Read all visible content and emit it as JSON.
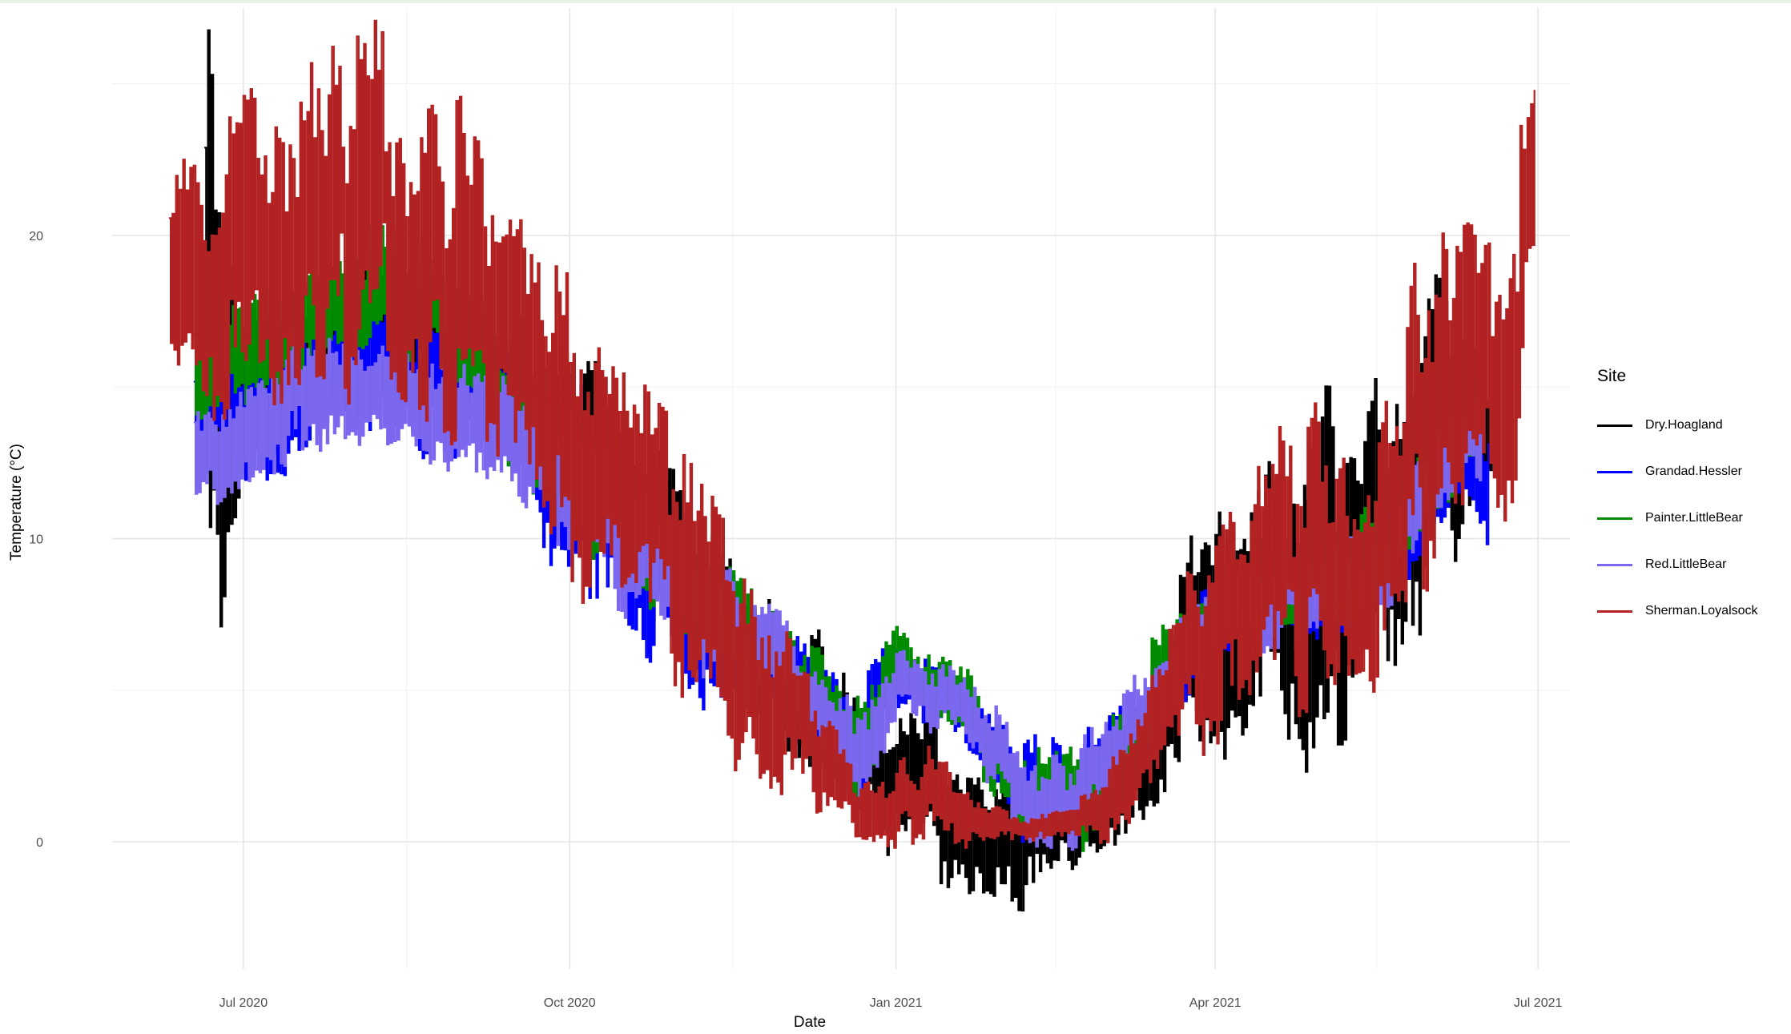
{
  "chart_data": {
    "type": "line",
    "title": "",
    "xlabel": "Date",
    "ylabel": "Temperature (°C)",
    "x_type": "date",
    "x_range": [
      "2020-05-25",
      "2021-07-10"
    ],
    "ylim": [
      -4.2,
      27.5
    ],
    "y_ticks": [
      0,
      10,
      20
    ],
    "x_ticks": [
      {
        "date": "2020-07-01",
        "label": "Jul 2020"
      },
      {
        "date": "2020-10-01",
        "label": "Oct 2020"
      },
      {
        "date": "2021-01-01",
        "label": "Jan 2021"
      },
      {
        "date": "2021-04-01",
        "label": "Apr 2021"
      },
      {
        "date": "2021-07-01",
        "label": "Jul 2021"
      }
    ],
    "grid": true,
    "legend_title": "Site",
    "legend_position": "right",
    "series": [
      {
        "name": "Dry.Hoagland",
        "color": "#000000",
        "points": [
          [
            "2020-06-20",
            15.2,
            15.2
          ],
          [
            "2020-07-01",
            15.5,
            3.0
          ],
          [
            "2020-07-20",
            16.8,
            3.0
          ],
          [
            "2020-08-10",
            17.3,
            3.0
          ],
          [
            "2020-09-01",
            16.4,
            3.0
          ],
          [
            "2020-09-20",
            14.0,
            3.5
          ],
          [
            "2020-10-05",
            12.8,
            3.5
          ],
          [
            "2020-10-20",
            10.8,
            3.5
          ],
          [
            "2020-11-05",
            8.5,
            3.0
          ],
          [
            "2020-11-25",
            6.0,
            2.5
          ],
          [
            "2020-12-10",
            4.6,
            2.5
          ],
          [
            "2020-12-25",
            2.2,
            3.0
          ],
          [
            "2021-01-10",
            1.6,
            3.0
          ],
          [
            "2021-01-25",
            0.3,
            3.0
          ],
          [
            "2021-02-05",
            0.1,
            3.0
          ],
          [
            "2021-02-20",
            0.3,
            2.0
          ],
          [
            "2021-03-05",
            1.0,
            2.5
          ],
          [
            "2021-03-20",
            5.0,
            3.0
          ],
          [
            "2021-04-01",
            7.5,
            6.0
          ],
          [
            "2021-04-15",
            8.8,
            5.0
          ],
          [
            "2021-05-01",
            8.0,
            8.0
          ],
          [
            "2021-05-15",
            10.5,
            6.0
          ],
          [
            "2021-06-01",
            12.5,
            7.0
          ],
          [
            "2021-06-12",
            14.2,
            5.0
          ],
          [
            "2021-06-18",
            13.0,
            3.0
          ]
        ]
      },
      {
        "name": "Grandad.Hessler",
        "color": "#0000ff",
        "points": [
          [
            "2020-06-17",
            13.8,
            2.5
          ],
          [
            "2020-07-01",
            14.3,
            3.0
          ],
          [
            "2020-07-20",
            15.2,
            3.0
          ],
          [
            "2020-08-10",
            15.6,
            3.0
          ],
          [
            "2020-09-01",
            15.0,
            3.0
          ],
          [
            "2020-09-15",
            13.8,
            3.0
          ],
          [
            "2020-10-05",
            11.0,
            4.5
          ],
          [
            "2020-10-20",
            9.8,
            4.0
          ],
          [
            "2020-11-05",
            7.8,
            4.0
          ],
          [
            "2020-11-25",
            6.0,
            2.0
          ],
          [
            "2020-12-10",
            4.2,
            2.0
          ],
          [
            "2020-12-20",
            3.0,
            2.5
          ],
          [
            "2021-01-01",
            5.5,
            1.5
          ],
          [
            "2021-01-20",
            4.3,
            1.5
          ],
          [
            "2021-02-05",
            1.8,
            2.0
          ],
          [
            "2021-02-20",
            1.5,
            2.0
          ],
          [
            "2021-03-05",
            3.0,
            2.0
          ],
          [
            "2021-03-20",
            5.2,
            2.0
          ],
          [
            "2021-04-01",
            7.5,
            2.0
          ],
          [
            "2021-04-15",
            8.2,
            2.0
          ],
          [
            "2021-05-01",
            8.5,
            2.0
          ],
          [
            "2021-05-15",
            9.0,
            2.0
          ],
          [
            "2021-06-01",
            11.0,
            2.0
          ],
          [
            "2021-06-12",
            12.8,
            2.0
          ],
          [
            "2021-06-17",
            11.2,
            3.0
          ]
        ]
      },
      {
        "name": "Painter.LittleBear",
        "color": "#008b00",
        "points": [
          [
            "2020-06-17",
            15.0,
            2.5
          ],
          [
            "2020-07-01",
            16.2,
            2.5
          ],
          [
            "2020-07-20",
            17.8,
            2.5
          ],
          [
            "2020-08-10",
            18.2,
            2.5
          ],
          [
            "2020-09-01",
            16.8,
            2.5
          ],
          [
            "2020-09-15",
            14.5,
            3.0
          ],
          [
            "2020-10-05",
            12.2,
            3.5
          ],
          [
            "2020-10-20",
            10.6,
            3.0
          ],
          [
            "2020-11-05",
            8.4,
            3.0
          ],
          [
            "2020-11-25",
            6.6,
            2.0
          ],
          [
            "2020-12-10",
            4.8,
            2.0
          ],
          [
            "2020-12-20",
            2.8,
            2.5
          ],
          [
            "2021-01-01",
            5.8,
            1.5
          ],
          [
            "2021-01-20",
            4.5,
            1.5
          ],
          [
            "2021-02-05",
            1.5,
            2.0
          ],
          [
            "2021-02-20",
            1.2,
            2.0
          ],
          [
            "2021-03-05",
            3.0,
            2.0
          ],
          [
            "2021-03-20",
            6.0,
            2.0
          ],
          [
            "2021-04-01",
            7.8,
            2.0
          ],
          [
            "2021-04-15",
            8.6,
            2.0
          ],
          [
            "2021-05-01",
            8.8,
            2.0
          ],
          [
            "2021-05-15",
            9.5,
            2.0
          ],
          [
            "2021-06-01",
            12.0,
            2.0
          ],
          [
            "2021-06-12",
            14.5,
            2.5
          ],
          [
            "2021-06-15",
            13.5,
            2.5
          ]
        ]
      },
      {
        "name": "Red.LittleBear",
        "color": "#7b68ee",
        "points": [
          [
            "2020-06-17",
            12.2,
            2.0
          ],
          [
            "2020-07-01",
            13.6,
            2.5
          ],
          [
            "2020-07-20",
            14.8,
            2.5
          ],
          [
            "2020-08-10",
            15.2,
            2.5
          ],
          [
            "2020-09-01",
            14.5,
            2.5
          ],
          [
            "2020-09-15",
            13.5,
            2.5
          ],
          [
            "2020-10-05",
            11.5,
            3.0
          ],
          [
            "2020-10-20",
            9.5,
            3.0
          ],
          [
            "2020-11-05",
            7.8,
            3.0
          ],
          [
            "2020-11-25",
            6.2,
            2.0
          ],
          [
            "2020-12-10",
            4.8,
            2.0
          ],
          [
            "2020-12-20",
            2.0,
            2.5
          ],
          [
            "2021-01-01",
            5.2,
            1.5
          ],
          [
            "2021-01-20",
            4.6,
            1.5
          ],
          [
            "2021-02-05",
            1.5,
            2.0
          ],
          [
            "2021-02-20",
            1.3,
            2.0
          ],
          [
            "2021-03-05",
            3.5,
            2.0
          ],
          [
            "2021-03-20",
            5.5,
            2.0
          ],
          [
            "2021-04-01",
            7.3,
            2.0
          ],
          [
            "2021-04-15",
            8.0,
            2.0
          ],
          [
            "2021-05-01",
            8.3,
            2.0
          ],
          [
            "2021-05-15",
            8.8,
            2.0
          ],
          [
            "2021-06-01",
            11.5,
            2.0
          ],
          [
            "2021-06-12",
            13.0,
            2.0
          ],
          [
            "2021-06-15",
            12.5,
            2.0
          ]
        ]
      },
      {
        "name": "Sherman.Loyalsock",
        "color": "#b22222",
        "points": [
          [
            "2020-06-10",
            18.5,
            4.5
          ],
          [
            "2020-07-01",
            19.5,
            6.5
          ],
          [
            "2020-07-20",
            20.5,
            7.0
          ],
          [
            "2020-08-10",
            21.0,
            7.0
          ],
          [
            "2020-09-01",
            18.5,
            6.5
          ],
          [
            "2020-09-20",
            14.5,
            5.5
          ],
          [
            "2020-10-05",
            13.0,
            6.0
          ],
          [
            "2020-10-20",
            11.5,
            5.0
          ],
          [
            "2020-11-05",
            8.0,
            5.0
          ],
          [
            "2020-11-25",
            5.0,
            4.0
          ],
          [
            "2020-12-10",
            2.8,
            2.5
          ],
          [
            "2020-12-20",
            1.2,
            1.5
          ],
          [
            "2021-01-10",
            1.5,
            2.0
          ],
          [
            "2021-01-25",
            0.8,
            1.0
          ],
          [
            "2021-02-05",
            0.5,
            0.5
          ],
          [
            "2021-02-20",
            0.6,
            0.8
          ],
          [
            "2021-03-05",
            1.2,
            2.0
          ],
          [
            "2021-03-20",
            5.0,
            3.0
          ],
          [
            "2021-04-01",
            6.5,
            5.0
          ],
          [
            "2021-04-15",
            9.0,
            5.0
          ],
          [
            "2021-05-01",
            9.5,
            6.0
          ],
          [
            "2021-05-15",
            9.0,
            5.0
          ],
          [
            "2021-06-01",
            14.5,
            7.0
          ],
          [
            "2021-06-15",
            16.0,
            6.0
          ],
          [
            "2021-06-23",
            16.5,
            6.5
          ],
          [
            "2021-06-30",
            21.5,
            5.5
          ]
        ]
      }
    ]
  }
}
